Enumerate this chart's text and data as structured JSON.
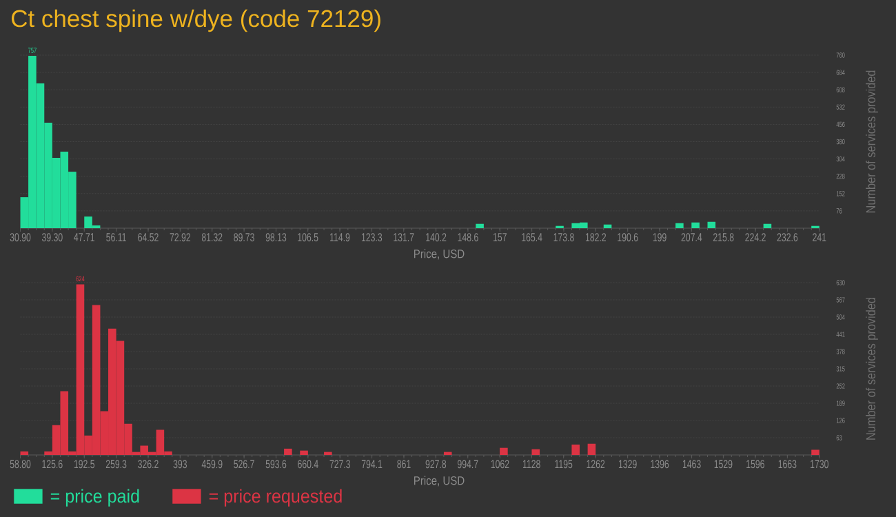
{
  "chart_data": [
    {
      "type": "histogram",
      "title": "Ct chest spine w/dye (code 72129)",
      "xlabel": "Price, USD",
      "ylabel": "Number of services provided",
      "bins": [
        30.9,
        33.0,
        35.1,
        37.2,
        39.3,
        41.41,
        43.51,
        45.61,
        47.71,
        49.81,
        51.91,
        54.01,
        56.11,
        58.21,
        60.31,
        62.42,
        64.52,
        66.62,
        68.72,
        70.82,
        72.92,
        75.02,
        77.12,
        79.22,
        81.32,
        83.43,
        85.53,
        87.63,
        89.73,
        91.83,
        93.93,
        96.03,
        98.13,
        100.23,
        102.33,
        104.44,
        106.54,
        108.64,
        110.74,
        112.84,
        114.94,
        117.04,
        119.14,
        121.24,
        123.34,
        125.45,
        127.55,
        129.65,
        131.75,
        133.85,
        135.95,
        138.05,
        140.15,
        142.25,
        144.35,
        146.46,
        148.56,
        150.66,
        152.76,
        154.86,
        156.96,
        159.06,
        161.16,
        163.26,
        165.36,
        167.47,
        169.57,
        171.67,
        173.77,
        175.87,
        177.97,
        180.07,
        182.17,
        184.27,
        186.37,
        188.48,
        190.58,
        192.68,
        194.78,
        196.88,
        198.98,
        201.08,
        203.18,
        205.28,
        207.38,
        209.49,
        211.59,
        213.69,
        215.79,
        217.89,
        219.99,
        222.09,
        224.19,
        226.29,
        228.39,
        230.5,
        232.6,
        234.7,
        236.8,
        238.9,
        241.0
      ],
      "series": [
        {
          "name": "= price paid",
          "color": "#22dd9b",
          "values": [
            136,
            757,
            636,
            463,
            309,
            336,
            248,
            0,
            51,
            12,
            0,
            0,
            0,
            0,
            0,
            0,
            0,
            0,
            0,
            0,
            0,
            0,
            0,
            0,
            0,
            0,
            0,
            0,
            0,
            0,
            0,
            0,
            0,
            0,
            0,
            0,
            0,
            0,
            0,
            0,
            0,
            0,
            0,
            0,
            0,
            0,
            0,
            0,
            0,
            0,
            0,
            0,
            0,
            0,
            0,
            0,
            0,
            19,
            0,
            0,
            0,
            0,
            0,
            0,
            0,
            0,
            0,
            10,
            0,
            22,
            25,
            0,
            0,
            16,
            0,
            0,
            0,
            0,
            0,
            0,
            0,
            0,
            22,
            0,
            25,
            0,
            28,
            0,
            0,
            0,
            0,
            0,
            0,
            19,
            0,
            0,
            0,
            0,
            0,
            10
          ],
          "value_labels": [
            null,
            "757",
            null,
            null,
            null,
            null,
            null,
            null,
            null,
            null,
            null,
            null,
            null,
            null,
            null,
            null,
            null,
            null,
            null,
            null,
            null,
            null,
            null,
            null,
            null,
            null,
            null,
            null,
            null,
            null,
            null,
            null,
            null,
            null,
            null,
            null,
            null,
            null,
            null,
            null,
            null,
            null,
            null,
            null,
            null,
            null,
            null,
            null,
            null,
            null,
            null,
            null,
            null,
            null,
            null,
            null,
            null,
            null,
            null,
            null,
            null,
            null,
            null,
            null,
            null,
            null,
            null,
            null,
            null,
            null,
            null,
            null,
            null,
            null,
            null,
            null,
            null,
            null,
            null,
            null,
            null,
            null,
            null,
            null,
            null,
            null,
            null,
            null,
            null,
            null,
            null,
            null,
            null,
            null,
            null,
            null,
            null,
            null,
            null,
            null
          ]
        }
      ],
      "xlim": [
        30.9,
        241
      ],
      "xticks": [
        {
          "value": 30.9,
          "label": "30.90"
        },
        {
          "value": 39.3,
          "label": "39.30"
        },
        47.71,
        56.11,
        64.52,
        72.92,
        81.32,
        89.73,
        98.13,
        106.5,
        114.9,
        123.3,
        131.7,
        140.2,
        148.6,
        157,
        165.4,
        173.8,
        182.2,
        190.6,
        199,
        207.4,
        215.8,
        224.2,
        232.6,
        241
      ],
      "ylim": [
        0,
        760
      ],
      "yticks": [
        76,
        152,
        228,
        304,
        380,
        456,
        532,
        608,
        684,
        760
      ],
      "grid": "y",
      "legend": "bottom left"
    },
    {
      "type": "histogram",
      "xlabel": "Price, USD",
      "ylabel": "Number of services provided",
      "bins": [
        58.8,
        75.51,
        92.22,
        108.94,
        125.65,
        142.36,
        159.07,
        175.78,
        192.5,
        209.21,
        225.92,
        242.63,
        259.34,
        276.06,
        292.77,
        309.48,
        326.19,
        342.9,
        359.62,
        376.33,
        393.04,
        409.75,
        426.46,
        443.18,
        459.89,
        476.6,
        493.31,
        510.02,
        526.74,
        543.45,
        560.16,
        576.87,
        593.58,
        610.3,
        627.01,
        643.72,
        660.43,
        677.14,
        693.86,
        710.57,
        727.28,
        743.99,
        760.7,
        777.42,
        794.13,
        810.84,
        827.55,
        844.26,
        860.98,
        877.69,
        894.4,
        911.11,
        927.82,
        944.54,
        961.25,
        977.96,
        994.67,
        1011.38,
        1028.1,
        1044.81,
        1061.52,
        1078.23,
        1094.94,
        1111.66,
        1128.37,
        1145.08,
        1161.79,
        1178.5,
        1195.22,
        1211.93,
        1228.64,
        1245.35,
        1262.06,
        1278.78,
        1295.49,
        1312.2,
        1328.91,
        1345.62,
        1362.34,
        1379.05,
        1395.76,
        1412.47,
        1429.18,
        1445.9,
        1462.61,
        1479.32,
        1496.03,
        1512.74,
        1529.46,
        1546.17,
        1562.88,
        1579.59,
        1596.3,
        1613.02,
        1629.73,
        1646.44,
        1663.15,
        1679.86,
        1696.58,
        1713.29,
        1730.0
      ],
      "series": [
        {
          "name": "= price requested",
          "color": "#dc3444",
          "values": [
            13,
            0,
            0,
            13,
            109,
            233,
            13,
            624,
            71,
            548,
            160,
            462,
            417,
            114,
            11,
            34,
            11,
            92,
            13,
            0,
            0,
            0,
            0,
            0,
            0,
            0,
            0,
            0,
            0,
            0,
            0,
            0,
            0,
            23,
            0,
            16,
            0,
            0,
            11,
            0,
            0,
            0,
            0,
            0,
            0,
            0,
            0,
            0,
            0,
            0,
            0,
            0,
            0,
            11,
            0,
            0,
            0,
            0,
            0,
            0,
            26,
            0,
            0,
            0,
            21,
            0,
            0,
            0,
            0,
            38,
            0,
            41,
            0,
            0,
            0,
            0,
            0,
            0,
            0,
            0,
            0,
            0,
            0,
            0,
            0,
            0,
            0,
            0,
            0,
            0,
            0,
            0,
            0,
            0,
            0,
            0,
            0,
            0,
            0,
            19
          ],
          "value_labels": [
            null,
            null,
            null,
            null,
            null,
            null,
            null,
            "624",
            null,
            null,
            null,
            null,
            null,
            null,
            null,
            null,
            null,
            null,
            null,
            null,
            null,
            null,
            null,
            null,
            null,
            null,
            null,
            null,
            null,
            null,
            null,
            null,
            null,
            null,
            null,
            null,
            null,
            null,
            null,
            null,
            null,
            null,
            null,
            null,
            null,
            null,
            null,
            null,
            null,
            null,
            null,
            null,
            null,
            null,
            null,
            null,
            null,
            null,
            null,
            null,
            null,
            null,
            null,
            null,
            null,
            null,
            null,
            null,
            null,
            null,
            null,
            null,
            null,
            null,
            null,
            null,
            null,
            null,
            null,
            null,
            null,
            null,
            null,
            null,
            null,
            null,
            null,
            null,
            null,
            null,
            null,
            null,
            null,
            null,
            null,
            null,
            null,
            null,
            null,
            null
          ]
        }
      ],
      "xlim": [
        58.8,
        1730
      ],
      "xticks": [
        {
          "value": 58.8,
          "label": "58.80"
        },
        125.6,
        192.5,
        259.3,
        326.2,
        393,
        459.9,
        526.7,
        593.6,
        660.4,
        727.3,
        794.1,
        861,
        927.8,
        994.7,
        1062,
        1128,
        1195,
        1262,
        1329,
        1396,
        1463,
        1529,
        1596,
        1663,
        1730
      ],
      "ylim": [
        0,
        630
      ],
      "yticks": [
        63,
        126,
        189,
        252,
        315,
        378,
        441,
        504,
        567,
        630
      ],
      "grid": "y",
      "legend": "bottom left"
    }
  ]
}
